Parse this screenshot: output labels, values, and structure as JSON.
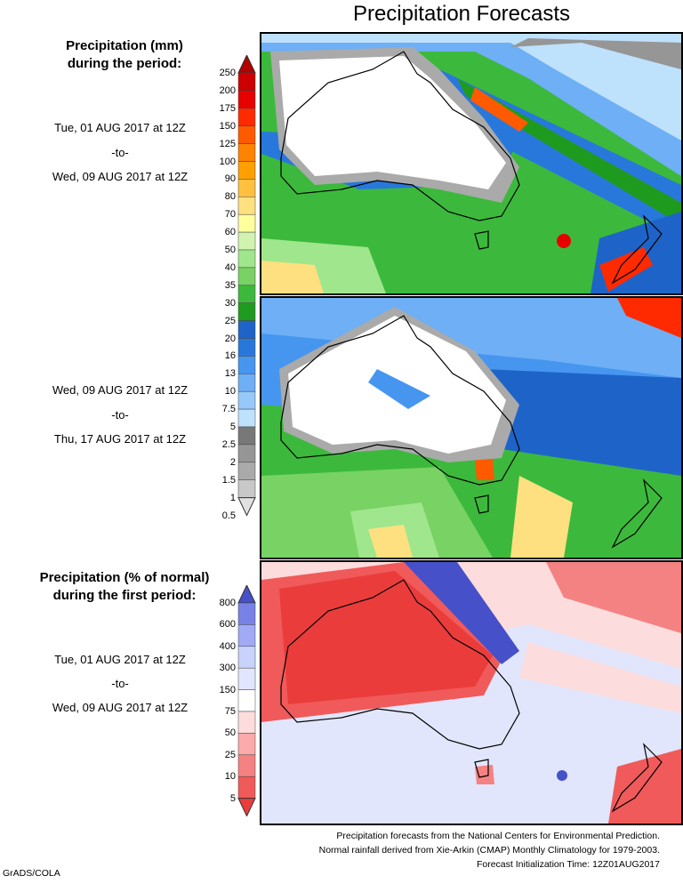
{
  "title": "Precipitation Forecasts",
  "panel1": {
    "heading_line1": "Precipitation (mm)",
    "heading_line2": "during the period:",
    "start": "Tue, 01 AUG 2017 at 12Z",
    "sep": "-to-",
    "end": "Wed, 09 AUG 2017 at 12Z"
  },
  "panel2": {
    "start": "Wed, 09 AUG 2017 at 12Z",
    "sep": "-to-",
    "end": "Thu, 17 AUG 2017 at 12Z"
  },
  "panel3": {
    "heading_line1": "Precipitation (% of normal)",
    "heading_line2": "during the first period:",
    "start": "Tue, 01 AUG 2017 at 12Z",
    "sep": "-to-",
    "end": "Wed, 09 AUG 2017 at 12Z"
  },
  "colorbar_mm": {
    "labels": [
      "250",
      "200",
      "175",
      "150",
      "125",
      "100",
      "90",
      "80",
      "70",
      "60",
      "50",
      "40",
      "35",
      "30",
      "25",
      "20",
      "16",
      "13",
      "10",
      "7.5",
      "5",
      "2.5",
      "2",
      "1.5",
      "1",
      "0.5"
    ],
    "colors": [
      "#b40000",
      "#cc0000",
      "#e60000",
      "#ff2a00",
      "#ff5a00",
      "#ff8200",
      "#ffa000",
      "#ffc040",
      "#ffe080",
      "#ffff9e",
      "#d2f3b0",
      "#a0e68c",
      "#78d264",
      "#3cb93c",
      "#1e9b1e",
      "#1e64c8",
      "#2878dc",
      "#4696f0",
      "#6eaff5",
      "#96c8fa",
      "#bee1fc",
      "#787878",
      "#969696",
      "#aaaaaa",
      "#c8c8c8",
      "#e1e1e1"
    ]
  },
  "colorbar_pct": {
    "labels": [
      "800",
      "600",
      "400",
      "300",
      "150",
      "75",
      "50",
      "25",
      "10",
      "5"
    ],
    "colors": [
      "#4650c8",
      "#7882e6",
      "#a0aaf5",
      "#c8d2fa",
      "#e1e6fc",
      "#ffffff",
      "#fcdcdc",
      "#faaaaa",
      "#f58282",
      "#f05a5a",
      "#eb3c3c"
    ]
  },
  "footer": {
    "line1": "Precipitation forecasts from the National Centers for Environmental Prediction.",
    "line2": "Normal rainfall derived from Xie-Arkin (CMAP) Monthly Climatology for 1979-2003.",
    "line3": "Forecast Initialization Time: 12Z01AUG2017"
  },
  "credit": "GrADS/COLA"
}
